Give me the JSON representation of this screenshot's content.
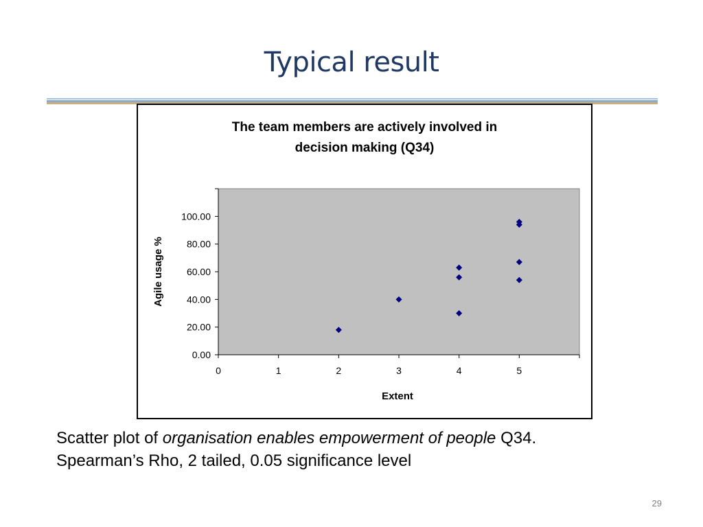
{
  "slide": {
    "title": "Typical result",
    "page_number": "29"
  },
  "caption": {
    "line1_prefix": "Scatter plot of ",
    "line1_italic": "organisation enables empowerment of people",
    "line1_suffix": " Q34.",
    "line2": "Spearman’s Rho, 2 tailed, 0.05 significance level"
  },
  "chart_data": {
    "type": "scatter",
    "title": "The team members are actively involved in decision making (Q34)",
    "title_lines": [
      "The team members are actively involved in",
      "decision making (Q34)"
    ],
    "xlabel": "Extent",
    "ylabel": "Agile usage %",
    "xlim": [
      0,
      6
    ],
    "ylim": [
      0,
      120
    ],
    "xticks": [
      0,
      1,
      2,
      3,
      4,
      5,
      6
    ],
    "xtick_labels": [
      "0",
      "1",
      "2",
      "3",
      "4",
      "5",
      ""
    ],
    "yticks": [
      0,
      20,
      40,
      60,
      80,
      100,
      120
    ],
    "ytick_labels": [
      "0.00",
      "20.00",
      "40.00",
      "60.00",
      "80.00",
      "100.00",
      ""
    ],
    "grid": false,
    "legend": false,
    "plot_background": "#c0c0c0",
    "marker_color": "#000080",
    "marker": "diamond",
    "series": [
      {
        "points": [
          {
            "x": 2,
            "y": 18
          },
          {
            "x": 3,
            "y": 40
          },
          {
            "x": 4,
            "y": 30
          },
          {
            "x": 4,
            "y": 56
          },
          {
            "x": 4,
            "y": 63
          },
          {
            "x": 5,
            "y": 54
          },
          {
            "x": 5,
            "y": 67
          },
          {
            "x": 5,
            "y": 94
          },
          {
            "x": 5,
            "y": 96
          }
        ]
      }
    ]
  }
}
